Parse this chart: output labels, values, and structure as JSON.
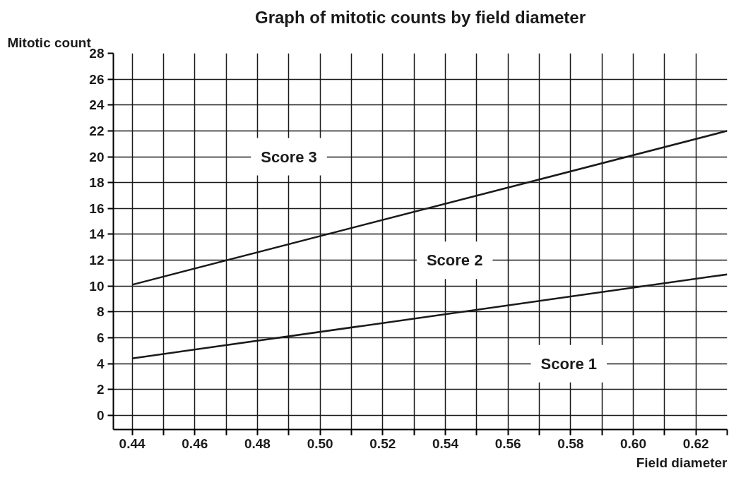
{
  "chart_data": {
    "type": "line",
    "title": "Graph of mitotic counts by field diameter",
    "xlabel": "Field diameter",
    "ylabel": "Mitotic count",
    "x": [
      0.44,
      0.63
    ],
    "series": [
      {
        "color": "#1a1a1a",
        "values": [
          4.4,
          10.9
        ]
      },
      {
        "color": "#1a1a1a",
        "values": [
          10.1,
          22.0
        ]
      }
    ],
    "annotations": [
      "Score 3",
      "Score 2",
      "Score 1"
    ],
    "xlim": [
      0.434,
      0.63
    ],
    "ylim": [
      -1.1,
      28
    ],
    "xticks": [
      0.44,
      {
        "value": 0.45,
        "label": null
      },
      0.46,
      {
        "value": 0.47,
        "label": null
      },
      0.48,
      {
        "value": 0.49,
        "label": null
      },
      "0.50",
      {
        "value": 0.51,
        "label": null
      },
      0.52,
      {
        "value": 0.53,
        "label": null
      },
      0.54,
      {
        "value": 0.55,
        "label": null
      },
      0.56,
      {
        "value": 0.57,
        "label": null
      },
      0.58,
      {
        "value": 0.59,
        "label": null
      },
      "0.60",
      {
        "value": 0.61,
        "label": null
      },
      0.62,
      {
        "value": 0.63,
        "label": null
      }
    ],
    "yticks": [
      0,
      2,
      4,
      6,
      8,
      10,
      12,
      14,
      16,
      18,
      20,
      22,
      24,
      26,
      28
    ],
    "grid": true,
    "marker": "none",
    "line_style": "solid"
  }
}
